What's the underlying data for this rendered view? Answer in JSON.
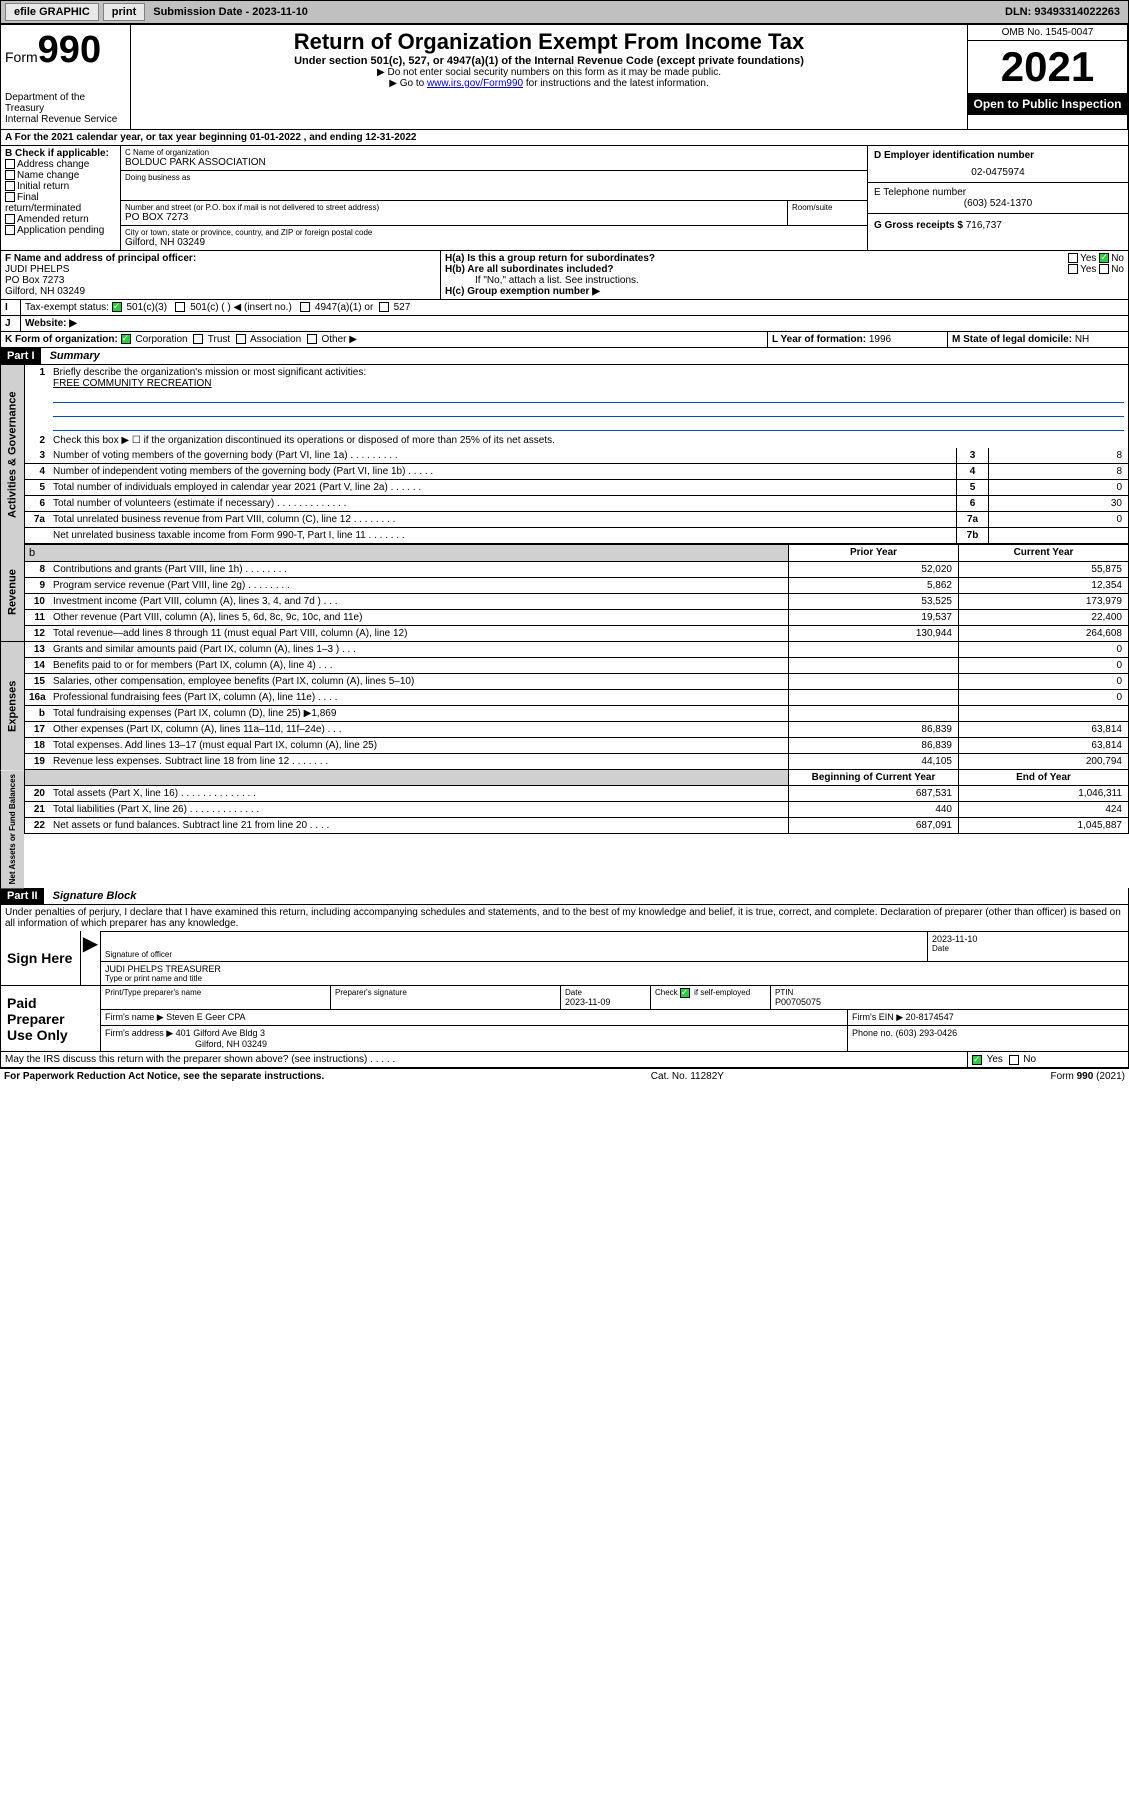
{
  "topbar": {
    "efile": "efile GRAPHIC",
    "print": "print",
    "subdate_label": "Submission Date - 2023-11-10",
    "dln_label": "DLN: 93493314022263"
  },
  "header": {
    "form_label": "Form",
    "form_number": "990",
    "title": "Return of Organization Exempt From Income Tax",
    "subtitle": "Under section 501(c), 527, or 4947(a)(1) of the Internal Revenue Code (except private foundations)",
    "instr1": "▶ Do not enter social security numbers on this form as it may be made public.",
    "instr2_pre": "▶ Go to ",
    "instr2_link": "www.irs.gov/Form990",
    "instr2_post": " for instructions and the latest information.",
    "dept": "Department of the Treasury",
    "irs": "Internal Revenue Service",
    "omb": "OMB No. 1545-0047",
    "year": "2021",
    "inspect": "Open to Public Inspection"
  },
  "box_a": {
    "text": "For the 2021 calendar year, or tax year beginning 01-01-2022   , and ending 12-31-2022"
  },
  "box_b": {
    "label": "B Check if applicable:",
    "opts": [
      "Address change",
      "Name change",
      "Initial return",
      "Final return/terminated",
      "Amended return",
      "Application pending"
    ]
  },
  "box_c": {
    "label": "C Name of organization",
    "name": "BOLDUC PARK ASSOCIATION",
    "dba_label": "Doing business as",
    "street_label": "Number and street (or P.O. box if mail is not delivered to street address)",
    "room_label": "Room/suite",
    "street": "PO BOX 7273",
    "city_label": "City or town, state or province, country, and ZIP or foreign postal code",
    "city": "Gilford, NH   03249"
  },
  "box_d": {
    "label": "D Employer identification number",
    "value": "02-0475974"
  },
  "box_e": {
    "label": "E Telephone number",
    "value": "(603) 524-1370"
  },
  "box_g": {
    "label": "G Gross receipts $",
    "value": "716,737"
  },
  "box_f": {
    "label": "F Name and address of principal officer:",
    "name": "JUDI PHELPS",
    "addr1": "PO Box 7273",
    "addr2": "Gilford, NH  03249"
  },
  "box_h": {
    "a_label": "H(a)  Is this a group return for subordinates?",
    "a_yes": "Yes",
    "a_no": "No",
    "b_label": "H(b)  Are all subordinates included?",
    "b_yes": "Yes",
    "b_no": "No",
    "b_note": "If \"No,\" attach a list. See instructions.",
    "c_label": "H(c)  Group exemption number ▶"
  },
  "box_i": {
    "label": "I",
    "text": "Tax-exempt status:",
    "o1": "501(c)(3)",
    "o2": "501(c) (   ) ◀ (insert no.)",
    "o3": "4947(a)(1) or",
    "o4": "527"
  },
  "box_j": {
    "label": "J",
    "text": "Website: ▶"
  },
  "box_k": {
    "label": "K Form of organization:",
    "o1": "Corporation",
    "o2": "Trust",
    "o3": "Association",
    "o4": "Other ▶"
  },
  "box_l": {
    "label": "L Year of formation:",
    "value": "1996"
  },
  "box_m": {
    "label": "M State of legal domicile:",
    "value": "NH"
  },
  "part1": {
    "header": "Part I",
    "title": "Summary",
    "q1": "Briefly describe the organization's mission or most significant activities:",
    "q1_ans": "FREE COMMUNITY RECREATION",
    "q2": "Check this box ▶ ☐  if the organization discontinued its operations or disposed of more than 25% of its net assets."
  },
  "sections": {
    "gov": "Activities & Governance",
    "rev": "Revenue",
    "exp": "Expenses",
    "net": "Net Assets or Fund Balances"
  },
  "lines_single": [
    {
      "n": "3",
      "d": "Number of voting members of the governing body (Part VI, line 1a)   .    .    .    .    .    .    .    .    .",
      "box": "3",
      "v": "8"
    },
    {
      "n": "4",
      "d": "Number of independent voting members of the governing body (Part VI, line 1b)   .    .    .    .    .",
      "box": "4",
      "v": "8"
    },
    {
      "n": "5",
      "d": "Total number of individuals employed in calendar year 2021 (Part V, line 2a)   .    .    .    .    .    .",
      "box": "5",
      "v": "0"
    },
    {
      "n": "6",
      "d": "Total number of volunteers (estimate if necessary)   .    .    .    .    .    .    .    .    .    .    .    .    .",
      "box": "6",
      "v": "30"
    },
    {
      "n": "7a",
      "d": "Total unrelated business revenue from Part VIII, column (C), line 12   .    .    .    .    .    .    .    .",
      "box": "7a",
      "v": "0"
    },
    {
      "n": "",
      "d": "Net unrelated business taxable income from Form 990-T, Part I, line 11   .    .    .    .    .    .    .",
      "box": "7b",
      "v": ""
    }
  ],
  "col_headers": {
    "prior": "Prior Year",
    "current": "Current Year",
    "beg": "Beginning of Current Year",
    "end": "End of Year"
  },
  "revenue": [
    {
      "n": "8",
      "d": "Contributions and grants (Part VIII, line 1h)   .    .    .    .    .    .    .    .",
      "p": "52,020",
      "c": "55,875"
    },
    {
      "n": "9",
      "d": "Program service revenue (Part VIII, line 2g)   .    .    .    .    .    .    .    .",
      "p": "5,862",
      "c": "12,354"
    },
    {
      "n": "10",
      "d": "Investment income (Part VIII, column (A), lines 3, 4, and 7d )   .    .    .",
      "p": "53,525",
      "c": "173,979"
    },
    {
      "n": "11",
      "d": "Other revenue (Part VIII, column (A), lines 5, 6d, 8c, 9c, 10c, and 11e)",
      "p": "19,537",
      "c": "22,400"
    },
    {
      "n": "12",
      "d": "Total revenue—add lines 8 through 11 (must equal Part VIII, column (A), line 12)",
      "p": "130,944",
      "c": "264,608"
    }
  ],
  "expenses": [
    {
      "n": "13",
      "d": "Grants and similar amounts paid (Part IX, column (A), lines 1–3 )   .    .    .",
      "p": "",
      "c": "0"
    },
    {
      "n": "14",
      "d": "Benefits paid to or for members (Part IX, column (A), line 4)   .    .    .",
      "p": "",
      "c": "0"
    },
    {
      "n": "15",
      "d": "Salaries, other compensation, employee benefits (Part IX, column (A), lines 5–10)",
      "p": "",
      "c": "0"
    },
    {
      "n": "16a",
      "d": "Professional fundraising fees (Part IX, column (A), line 11e)   .    .    .    .",
      "p": "",
      "c": "0"
    },
    {
      "n": "b",
      "d": "Total fundraising expenses (Part IX, column (D), line 25) ▶1,869",
      "p": "SHADE",
      "c": "SHADE"
    },
    {
      "n": "17",
      "d": "Other expenses (Part IX, column (A), lines 11a–11d, 11f–24e)   .    .    .",
      "p": "86,839",
      "c": "63,814"
    },
    {
      "n": "18",
      "d": "Total expenses. Add lines 13–17 (must equal Part IX, column (A), line 25)",
      "p": "86,839",
      "c": "63,814"
    },
    {
      "n": "19",
      "d": "Revenue less expenses. Subtract line 18 from line 12   .    .    .    .    .    .    .",
      "p": "44,105",
      "c": "200,794"
    }
  ],
  "netassets": [
    {
      "n": "20",
      "d": "Total assets (Part X, line 16)   .    .    .    .    .    .    .    .    .    .    .    .    .    .",
      "p": "687,531",
      "c": "1,046,311"
    },
    {
      "n": "21",
      "d": "Total liabilities (Part X, line 26)   .    .    .    .    .    .    .    .    .    .    .    .    .",
      "p": "440",
      "c": "424"
    },
    {
      "n": "22",
      "d": "Net assets or fund balances. Subtract line 21 from line 20   .    .    .    .",
      "p": "687,091",
      "c": "1,045,887"
    }
  ],
  "part2": {
    "header": "Part II",
    "title": "Signature Block",
    "text": "Under penalties of perjury, I declare that I have examined this return, including accompanying schedules and statements, and to the best of my knowledge and belief, it is true, correct, and complete. Declaration of preparer (other than officer) is based on all information of which preparer has any knowledge."
  },
  "sign": {
    "here": "Sign Here",
    "sig_label": "Signature of officer",
    "date": "2023-11-10",
    "date_label": "Date",
    "name": "JUDI PHELPS  TREASURER",
    "name_label": "Type or print name and title"
  },
  "paid": {
    "label": "Paid Preparer Use Only",
    "c1": "Print/Type preparer's name",
    "c2": "Preparer's signature",
    "c3": "Date",
    "c3v": "2023-11-09",
    "c4": "Check ☑ if self-employed",
    "c5": "PTIN",
    "c5v": "P00705075",
    "firm_label": "Firm's name   ▶",
    "firm": "Steven E Geer CPA",
    "ein_label": "Firm's EIN ▶",
    "ein": "20-8174547",
    "addr_label": "Firm's address ▶",
    "addr": "401 Gilford Ave Bldg 3",
    "addr2": "Gilford, NH  03249",
    "phone_label": "Phone no.",
    "phone": "(603) 293-0426"
  },
  "irs_discuss": {
    "q": "May the IRS discuss this return with the preparer shown above? (see instructions)   .    .    .    .    .",
    "yes": "Yes",
    "no": "No"
  },
  "footer": {
    "left": "For Paperwork Reduction Act Notice, see the separate instructions.",
    "mid": "Cat. No. 11282Y",
    "right": "Form 990 (2021)"
  }
}
